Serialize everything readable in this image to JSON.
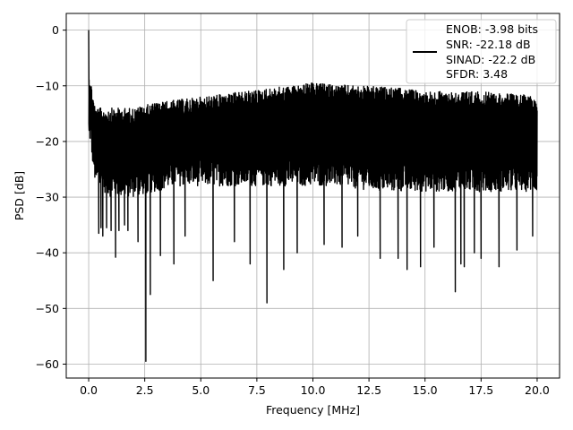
{
  "chart_data": {
    "type": "line",
    "title": "",
    "xlabel": "Frequency [MHz]",
    "ylabel": "PSD [dB]",
    "xlim": [
      -1.0,
      21.0
    ],
    "ylim": [
      -62.5,
      3.0
    ],
    "x_ticks": [
      0.0,
      2.5,
      5.0,
      7.5,
      10.0,
      12.5,
      15.0,
      17.5,
      20.0
    ],
    "x_tick_labels": [
      "0.0",
      "2.5",
      "5.0",
      "7.5",
      "10.0",
      "12.5",
      "15.0",
      "17.5",
      "20.0"
    ],
    "y_ticks": [
      0,
      -10,
      -20,
      -30,
      -40,
      -50,
      -60
    ],
    "y_tick_labels": [
      "0",
      "−10",
      "−20",
      "−30",
      "−40",
      "−50",
      "−60"
    ],
    "grid": true,
    "legend_position": "top-right",
    "line_color": "#000000",
    "legend_lines": [
      "ENOB: -3.98 bits",
      "SNR: -22.18 dB",
      "SINAD: -22.2 dB",
      "SFDR: 3.48"
    ],
    "series": [
      {
        "x_start": 0.0,
        "x_end": 20.0,
        "peak": {
          "x": 0.0,
          "y": 0.0
        },
        "upper_envelope": [
          [
            0.05,
            -8
          ],
          [
            0.3,
            -14
          ],
          [
            1.0,
            -14
          ],
          [
            2.0,
            -14
          ],
          [
            2.5,
            -13.5
          ],
          [
            3.0,
            -13
          ],
          [
            4.0,
            -12.5
          ],
          [
            5.0,
            -12
          ],
          [
            6.0,
            -11.5
          ],
          [
            7.0,
            -11
          ],
          [
            8.0,
            -10.5
          ],
          [
            9.0,
            -10
          ],
          [
            10.0,
            -9.5
          ],
          [
            11.0,
            -9.8
          ],
          [
            12.0,
            -10
          ],
          [
            13.0,
            -10.2
          ],
          [
            14.0,
            -10.5
          ],
          [
            15.0,
            -11
          ],
          [
            16.0,
            -11
          ],
          [
            17.0,
            -11
          ],
          [
            18.0,
            -11.2
          ],
          [
            19.0,
            -11.5
          ],
          [
            20.0,
            -11.8
          ]
        ],
        "lower_envelope": [
          [
            0.05,
            -20
          ],
          [
            0.3,
            -28
          ],
          [
            1.0,
            -30
          ],
          [
            2.0,
            -30
          ],
          [
            3.0,
            -29
          ],
          [
            4.0,
            -28
          ],
          [
            5.0,
            -28
          ],
          [
            6.0,
            -28
          ],
          [
            7.0,
            -28
          ],
          [
            8.0,
            -28
          ],
          [
            9.0,
            -28
          ],
          [
            10.0,
            -28
          ],
          [
            11.0,
            -28
          ],
          [
            12.0,
            -28.5
          ],
          [
            13.0,
            -29
          ],
          [
            14.0,
            -29
          ],
          [
            15.0,
            -29
          ],
          [
            16.0,
            -29
          ],
          [
            17.0,
            -29
          ],
          [
            18.0,
            -29
          ],
          [
            19.0,
            -29
          ],
          [
            20.0,
            -29
          ]
        ],
        "deep_dips": [
          [
            0.45,
            -36.5
          ],
          [
            0.55,
            -35.5
          ],
          [
            0.63,
            -37
          ],
          [
            0.8,
            -35.5
          ],
          [
            1.0,
            -36
          ],
          [
            1.2,
            -40.8
          ],
          [
            1.35,
            -36
          ],
          [
            1.6,
            -35
          ],
          [
            1.75,
            -36
          ],
          [
            2.2,
            -38
          ],
          [
            2.55,
            -59.5
          ],
          [
            2.75,
            -47.5
          ],
          [
            3.2,
            -40.5
          ],
          [
            3.8,
            -42
          ],
          [
            4.3,
            -37
          ],
          [
            5.55,
            -45
          ],
          [
            6.5,
            -38
          ],
          [
            7.2,
            -42
          ],
          [
            7.95,
            -49
          ],
          [
            8.7,
            -43
          ],
          [
            9.3,
            -40
          ],
          [
            10.5,
            -38.5
          ],
          [
            11.3,
            -39
          ],
          [
            12.0,
            -37
          ],
          [
            13.0,
            -41
          ],
          [
            13.8,
            -41
          ],
          [
            14.2,
            -43
          ],
          [
            14.8,
            -42.5
          ],
          [
            15.4,
            -39
          ],
          [
            16.35,
            -47
          ],
          [
            16.6,
            -42
          ],
          [
            16.75,
            -42.5
          ],
          [
            17.2,
            -40
          ],
          [
            17.5,
            -41
          ],
          [
            18.3,
            -42.5
          ],
          [
            19.1,
            -39.5
          ],
          [
            19.8,
            -37
          ]
        ]
      }
    ]
  }
}
